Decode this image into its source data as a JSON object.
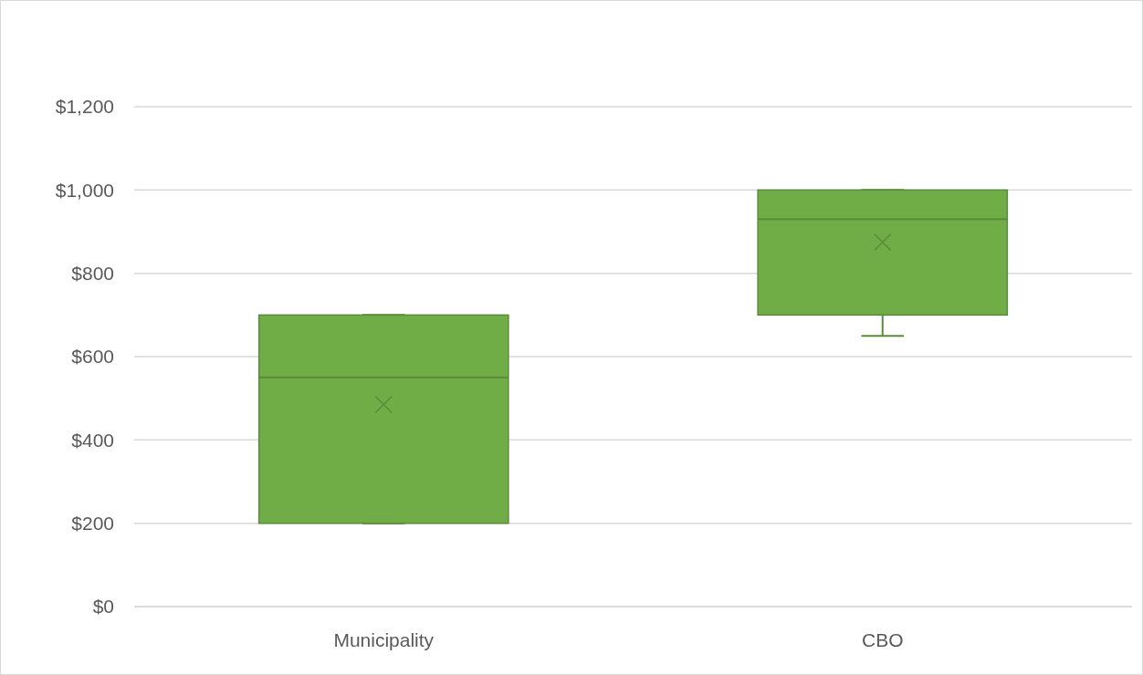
{
  "chart_data": {
    "type": "box",
    "categories": [
      "Municipality",
      "CBO"
    ],
    "boxes": [
      {
        "low": 200,
        "q1": 200,
        "median": 550,
        "q3": 700,
        "high": 700,
        "mean": 485
      },
      {
        "low": 650,
        "q1": 700,
        "median": 930,
        "q3": 1000,
        "high": 1000,
        "mean": 875
      }
    ],
    "color": "#70ad47",
    "ylim": [
      0,
      1200
    ],
    "yticks": [
      {
        "value": 0,
        "label": "$0"
      },
      {
        "value": 200,
        "label": "$200"
      },
      {
        "value": 400,
        "label": "$400"
      },
      {
        "value": 600,
        "label": "$600"
      },
      {
        "value": 800,
        "label": "$800"
      },
      {
        "value": 1000,
        "label": "$1,000"
      },
      {
        "value": 1200,
        "label": "$1,200"
      }
    ],
    "grid": "y"
  }
}
